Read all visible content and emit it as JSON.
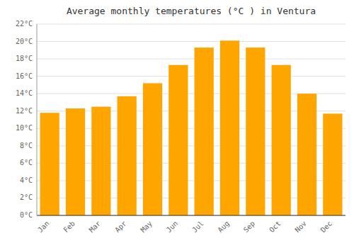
{
  "chart_data": {
    "type": "bar",
    "title": "Average monthly temperatures (°C ) in Ventura",
    "categories": [
      "Jan",
      "Feb",
      "Mar",
      "Apr",
      "May",
      "Jun",
      "Jul",
      "Aug",
      "Sep",
      "Oct",
      "Nov",
      "Dec"
    ],
    "values": [
      11.8,
      12.3,
      12.5,
      13.7,
      15.2,
      17.3,
      19.3,
      20.1,
      19.3,
      17.3,
      14.0,
      11.7
    ],
    "color": "#FFA500",
    "ylim": [
      0,
      22
    ],
    "yticks": [
      {
        "value": 0,
        "label": "0°C"
      },
      {
        "value": 2,
        "label": "2°C"
      },
      {
        "value": 4,
        "label": "4°C"
      },
      {
        "value": 6,
        "label": "6°C"
      },
      {
        "value": 8,
        "label": "8°C"
      },
      {
        "value": 10,
        "label": "10°C"
      },
      {
        "value": 12,
        "label": "12°C"
      },
      {
        "value": 14,
        "label": "14°C"
      },
      {
        "value": 16,
        "label": "16°C"
      },
      {
        "value": 18,
        "label": "18°C"
      },
      {
        "value": 20,
        "label": "20°C"
      },
      {
        "value": 22,
        "label": "22°C"
      }
    ],
    "grid": true
  }
}
